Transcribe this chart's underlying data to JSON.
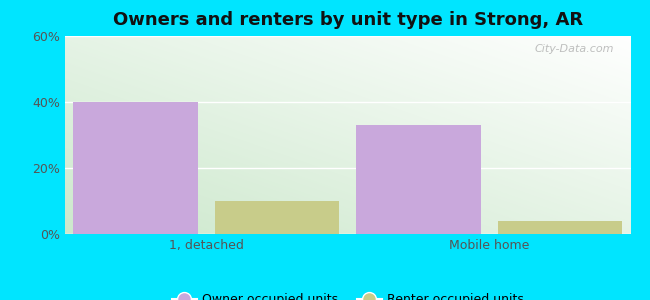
{
  "title": "Owners and renters by unit type in Strong, AR",
  "categories": [
    "1, detached",
    "Mobile home"
  ],
  "owner_values": [
    40.0,
    33.0
  ],
  "renter_values": [
    10.0,
    4.0
  ],
  "owner_color": "#c9a8dc",
  "renter_color": "#c8cc8a",
  "ylim": [
    0,
    60
  ],
  "yticks": [
    0,
    20,
    40,
    60
  ],
  "yticklabels": [
    "0%",
    "20%",
    "40%",
    "60%"
  ],
  "bar_width": 0.22,
  "legend_labels": [
    "Owner occupied units",
    "Renter occupied units"
  ],
  "outer_bg": "#00e5ff",
  "watermark": "City-Data.com",
  "group_centers": [
    0.25,
    0.75
  ]
}
